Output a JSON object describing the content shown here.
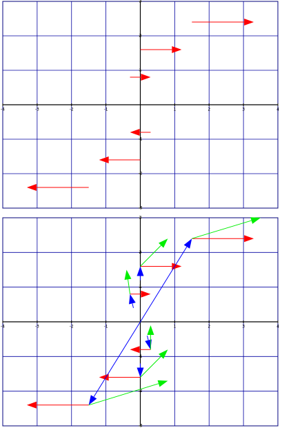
{
  "chart_data": [
    {
      "type": "quiver",
      "xlim": [
        -4,
        4
      ],
      "ylim": [
        -3,
        3
      ],
      "xticks": [
        -4,
        -3,
        -2,
        -1,
        1,
        2,
        3,
        4
      ],
      "yticks": [
        -3,
        -2,
        -1,
        1,
        2,
        3
      ],
      "grid": true,
      "series": [
        {
          "color": "#ff0000",
          "x0": [
            0,
            1.5,
            -0.3,
            0.3,
            0,
            -1.5
          ],
          "y0": [
            1.6,
            2.4,
            0.8,
            -0.8,
            -1.6,
            -2.4
          ],
          "x1": [
            1.2,
            3.3,
            0.3,
            -0.3,
            -1.2,
            -3.3
          ],
          "y1": [
            1.6,
            2.4,
            0.8,
            -0.8,
            -1.6,
            -2.4
          ]
        }
      ]
    },
    {
      "type": "quiver",
      "xlim": [
        -4,
        4
      ],
      "ylim": [
        -3,
        3
      ],
      "xticks": [
        -4,
        -3,
        -2,
        -1,
        1,
        2,
        3,
        4
      ],
      "yticks": [
        -3,
        -2,
        -1,
        1,
        2,
        3
      ],
      "grid": true,
      "series": [
        {
          "color": "#ff0000",
          "x0": [
            0,
            1.5,
            -0.3,
            0.3,
            0,
            -1.5
          ],
          "y0": [
            1.6,
            2.4,
            0.8,
            -0.8,
            -1.6,
            -2.4
          ],
          "x1": [
            1.2,
            3.3,
            0.3,
            -0.3,
            -1.2,
            -3.3
          ],
          "y1": [
            1.6,
            2.4,
            0.8,
            -0.8,
            -1.6,
            -2.4
          ]
        },
        {
          "color": "#0000ff",
          "x0": [
            0,
            0,
            0,
            -0.2,
            0,
            0.2
          ],
          "y0": [
            0,
            0,
            1.2,
            0.4,
            -1.2,
            -0.4
          ],
          "x1": [
            1.5,
            -1.5,
            0,
            -0.3,
            0,
            0.3
          ],
          "y1": [
            2.4,
            -2.4,
            1.6,
            0.8,
            -1.6,
            -0.8
          ]
        },
        {
          "color": "#00ee00",
          "x0": [
            0,
            1.5,
            -0.3,
            0.3,
            0,
            -1.5
          ],
          "y0": [
            1.6,
            2.4,
            0.8,
            -0.8,
            -1.6,
            -2.4
          ],
          "x1": [
            0.8,
            3.5,
            -0.4,
            0.3,
            0.8,
            0.8
          ],
          "y1": [
            2.4,
            3,
            1.5,
            -0.1,
            -0.8,
            -1.7
          ]
        }
      ]
    }
  ]
}
